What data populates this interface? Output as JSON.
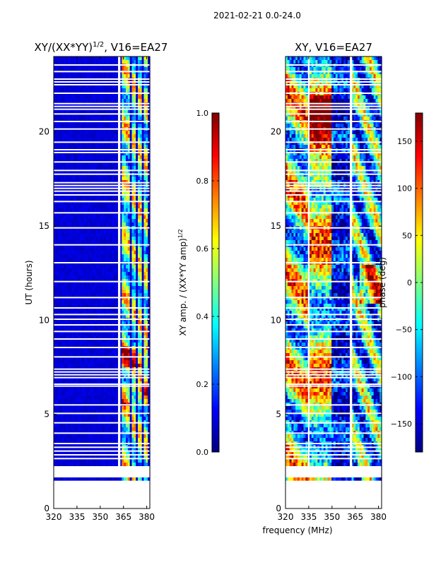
{
  "figure": {
    "suptitle": "2021-02-21 0.0-24.0",
    "shared_xlabel": "frequency (MHz)"
  },
  "colormap_stops": [
    "#00007f",
    "#0000ff",
    "#0080ff",
    "#00ffff",
    "#80ff80",
    "#ffff00",
    "#ff8000",
    "#ff0000",
    "#7f0000"
  ],
  "chart_data": [
    {
      "type": "heatmap",
      "panel": "left",
      "title": "XY/(XX*YY)^1/2, V16=EA27",
      "title_main": "XY/(XX*YY)",
      "title_sup": "1/2",
      "title_tail": ", V16=EA27",
      "xlabel": "",
      "ylabel": "UT (hours)",
      "xlim": [
        320,
        382
      ],
      "ylim": [
        0,
        24
      ],
      "xticks": [
        320,
        335,
        350,
        365,
        380
      ],
      "yticks": [
        0,
        5,
        10,
        15,
        20
      ],
      "data_start_hour": 1.5,
      "gap_hours": [
        [
          1.65,
          2.25
        ]
      ],
      "flagged_channel_bands": [
        [
          361.5,
          363.0
        ]
      ],
      "bright_channel_bands": [
        [
          363.5,
          366.0
        ],
        [
          367.0,
          369.5
        ],
        [
          371.0,
          373.0
        ],
        [
          374.5,
          376.5
        ],
        [
          378.0,
          380.5
        ]
      ],
      "colorbar": {
        "label_main": "XY amp. / (XX*YY amp)",
        "label_sup": "1/2",
        "range": [
          0.0,
          1.0
        ],
        "ticks": [
          "0.0",
          "0.2",
          "0.4",
          "0.6",
          "0.8",
          "1.0"
        ],
        "tick_values": [
          0.0,
          0.2,
          0.4,
          0.6,
          0.8,
          1.0
        ]
      }
    },
    {
      "type": "heatmap",
      "panel": "right",
      "title": "XY, V16=EA27",
      "xlabel": "frequency (MHz)",
      "ylabel": "",
      "xlim": [
        320,
        382
      ],
      "ylim": [
        0,
        24
      ],
      "xticks": [
        320,
        335,
        350,
        365,
        380
      ],
      "yticks": [
        0,
        5,
        10,
        15,
        20
      ],
      "data_start_hour": 1.5,
      "gap_hours": [
        [
          1.65,
          2.25
        ]
      ],
      "flagged_channel_bands": [
        [
          334.5,
          335.5
        ],
        [
          361.5,
          363.0
        ]
      ],
      "colorbar": {
        "label": "phase (deg)",
        "range": [
          -180,
          180
        ],
        "ticks": [
          "−150",
          "−100",
          "−50",
          "0",
          "50",
          "100",
          "150"
        ],
        "tick_values": [
          -150,
          -100,
          -50,
          0,
          50,
          100,
          150
        ]
      }
    }
  ],
  "flagged_time_rows": [
    2.65,
    2.85,
    3.05,
    3.25,
    3.45,
    4.0,
    4.55,
    5.05,
    5.5,
    6.5,
    6.6,
    6.95,
    7.1,
    7.25,
    7.4,
    8.05,
    8.55,
    9.0,
    9.4,
    9.75,
    10.05,
    10.3,
    10.65,
    11.2,
    12.05,
    13.05,
    14.0,
    14.9,
    15.7,
    16.3,
    16.65,
    16.85,
    17.0,
    17.15,
    17.3,
    17.75,
    17.95,
    18.4,
    18.9,
    19.05,
    19.45,
    20.15,
    20.55,
    20.95,
    21.2,
    21.35,
    21.5,
    22.05,
    22.5,
    22.65,
    22.8,
    23.2,
    23.55
  ]
}
